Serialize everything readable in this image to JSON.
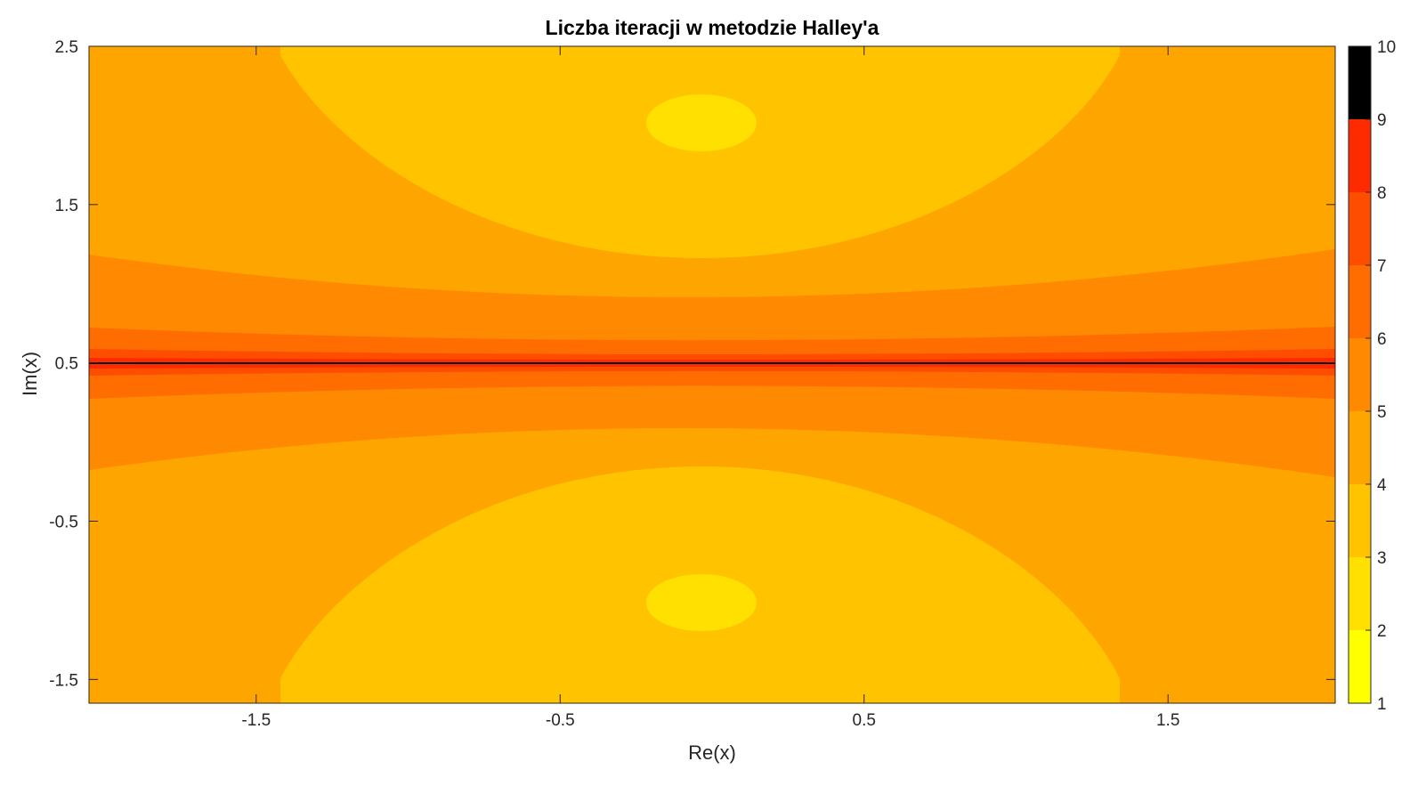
{
  "chart_data": {
    "type": "contourf",
    "title": "Liczba iteracji w metodzie Halley'a",
    "xlabel": "Re(x)",
    "ylabel": "Im(x)",
    "xlim": [
      -2.05,
      2.05
    ],
    "ylim": [
      -1.65,
      2.5
    ],
    "xticks": [
      -1.5,
      -0.5,
      0.5,
      1.5
    ],
    "xtick_labels": [
      "-1.5",
      "-0.5",
      "0.5",
      "1.5"
    ],
    "yticks": [
      -1.5,
      -0.5,
      0.5,
      1.5,
      2.5
    ],
    "ytick_labels": [
      "-1.5",
      "-0.5",
      "0.5",
      "1.5",
      "2.5"
    ],
    "colorbar": {
      "range": [
        1,
        10
      ],
      "ticks": [
        1,
        2,
        3,
        4,
        5,
        6,
        7,
        8,
        9,
        10
      ],
      "tick_labels": [
        "1",
        "2",
        "3",
        "4",
        "5",
        "6",
        "7",
        "8",
        "9",
        "10"
      ],
      "colors": [
        "#ffff00",
        "#ffe000",
        "#ffc300",
        "#ffa500",
        "#ff8900",
        "#ff6c00",
        "#ff4d00",
        "#ff2b00",
        "#000000"
      ],
      "colormap": "autumn (reversed) with black top"
    },
    "levels": [
      {
        "value": 2,
        "color": "#ffe000",
        "region": "small ellipses around roots (0, 2) and (0, -1)"
      },
      {
        "value": 3,
        "color": "#ffc300",
        "region": "large lobes around each root"
      },
      {
        "value": 4,
        "color": "#ffa500",
        "region": "background"
      },
      {
        "value": 5,
        "color": "#ff8900",
        "region": "band around Im = 0.5"
      },
      {
        "value": 6,
        "color": "#ff6c00",
        "region": "narrower band around Im = 0.5"
      },
      {
        "value": 7,
        "color": "#ff4d00",
        "region": "thin band around Im = 0.5"
      },
      {
        "value": 8,
        "color": "#ff2b00",
        "region": "very thin band near Im = 0.5"
      },
      {
        "value": 10,
        "color": "#000000",
        "region": "line Im = 0.5"
      }
    ],
    "roots": [
      {
        "re": 0,
        "im": 2
      },
      {
        "re": 0,
        "im": -1
      }
    ],
    "symmetry_axis_im": 0.5,
    "grid": false,
    "legend": "none"
  }
}
